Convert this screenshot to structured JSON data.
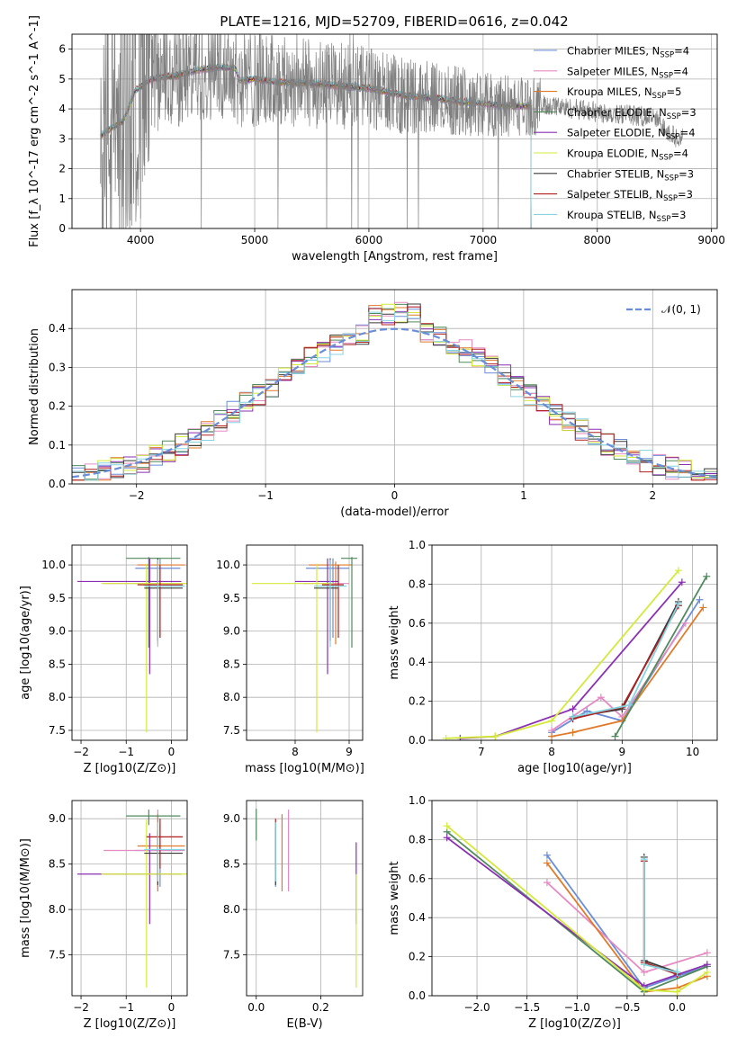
{
  "figure": {
    "title": "PLATE=1216, MJD=52709, FIBERID=0616, z=0.042"
  },
  "fits": [
    {
      "name": "Chabrier MILES",
      "nssp": "4",
      "color": "#6a8dd9"
    },
    {
      "name": "Salpeter MILES",
      "nssp": "4",
      "color": "#e68ac4"
    },
    {
      "name": "Kroupa MILES",
      "nssp": "5",
      "color": "#e07a29"
    },
    {
      "name": "Chabrier ELODIE",
      "nssp": "3",
      "color": "#4f8a5c"
    },
    {
      "name": "Salpeter ELODIE",
      "nssp": "4",
      "color": "#8a2fb3"
    },
    {
      "name": "Kroupa ELODIE",
      "nssp": "4",
      "color": "#d4ea3a"
    },
    {
      "name": "Chabrier STELIB",
      "nssp": "3",
      "color": "#3a3a3a"
    },
    {
      "name": "Salpeter STELIB",
      "nssp": "3",
      "color": "#b02020"
    },
    {
      "name": "Kroupa STELIB",
      "nssp": "3",
      "color": "#86d4e0"
    }
  ],
  "chart_data": [
    {
      "id": "spectrum",
      "type": "line",
      "xlabel": "wavelength [Angstrom, rest frame]",
      "ylabel": "Flux [f_λ 10^-17 erg cm^-2 s^-1 A^-1]",
      "xlim": [
        3400,
        9050
      ],
      "ylim": [
        0,
        6.5
      ],
      "xticks": [
        4000,
        5000,
        6000,
        7000,
        8000,
        9000
      ],
      "yticks": [
        0,
        1,
        2,
        3,
        4,
        5,
        6
      ],
      "legend": "upper right",
      "data_color": "#808080",
      "continuum": [
        [
          3650,
          3.1
        ],
        [
          3720,
          3.3
        ],
        [
          3850,
          3.6
        ],
        [
          3950,
          4.6
        ],
        [
          4050,
          4.9
        ],
        [
          4150,
          5.05
        ],
        [
          4300,
          5.1
        ],
        [
          4500,
          5.3
        ],
        [
          4700,
          5.4
        ],
        [
          4830,
          5.35
        ],
        [
          4870,
          4.95
        ],
        [
          5000,
          5.0
        ],
        [
          5200,
          4.9
        ],
        [
          5500,
          4.85
        ],
        [
          5800,
          4.75
        ],
        [
          6000,
          4.7
        ],
        [
          6300,
          4.45
        ],
        [
          6600,
          4.35
        ],
        [
          6900,
          4.2
        ],
        [
          7200,
          4.1
        ],
        [
          7420,
          4.1
        ],
        [
          7600,
          4.1
        ],
        [
          8000,
          3.9
        ],
        [
          8300,
          3.8
        ],
        [
          8500,
          3.7
        ],
        [
          8700,
          3.0
        ]
      ],
      "model_end": [
        7420,
        7420,
        7420,
        7420,
        7420,
        7420,
        7420,
        7420,
        7420
      ]
    },
    {
      "id": "residuals",
      "type": "histogram",
      "xlabel": "(data-model)/error",
      "ylabel": "Normed distribution",
      "xlim": [
        -2.5,
        2.5
      ],
      "ylim": [
        0,
        0.5
      ],
      "xticks": [
        -2,
        -1,
        0,
        1,
        2
      ],
      "yticks": [
        0.0,
        0.1,
        0.2,
        0.3,
        0.4
      ],
      "legend_label": "𝒩(0, 1)",
      "gaussian_color": "#6a8dd9"
    },
    {
      "id": "z-age",
      "type": "errorbar",
      "xlabel": "Z [log10(Z/Z⊙)]",
      "ylabel": "age [log10(age/yr)]",
      "xlim": [
        -2.2,
        0.35
      ],
      "ylim": [
        7.35,
        10.3
      ],
      "xticks": [
        -2,
        -1,
        0
      ],
      "yticks": [
        7.5,
        8.0,
        8.5,
        9.0,
        9.5,
        10.0
      ],
      "points": [
        {
          "fit": 0,
          "x": -0.25,
          "xerr": [
            0.55,
            0.45
          ],
          "y": 9.95,
          "yerr": [
            1.05,
            0.15
          ]
        },
        {
          "fit": 1,
          "x": -0.3,
          "xerr": [
            1.2,
            0.6
          ],
          "y": 9.72,
          "yerr": [
            0.85,
            0.35
          ]
        },
        {
          "fit": 2,
          "x": -0.3,
          "xerr": [
            0.45,
            0.6
          ],
          "y": 10.0,
          "yerr": [
            1.2,
            0.05
          ]
        },
        {
          "fit": 3,
          "x": -0.5,
          "xerr": [
            0.5,
            0.7
          ],
          "y": 10.1,
          "yerr": [
            1.35,
            0.02
          ]
        },
        {
          "fit": 4,
          "x": -0.48,
          "xerr": [
            1.6,
            0.7
          ],
          "y": 9.75,
          "yerr": [
            1.4,
            0.35
          ]
        },
        {
          "fit": 5,
          "x": -0.55,
          "xerr": [
            1.0,
            0.9
          ],
          "y": 9.72,
          "yerr": [
            2.25,
            0.3
          ]
        },
        {
          "fit": 6,
          "x": -0.3,
          "xerr": [
            0.3,
            0.55
          ],
          "y": 9.65,
          "yerr": [
            0.8,
            0.45
          ]
        },
        {
          "fit": 7,
          "x": -0.25,
          "xerr": [
            0.5,
            0.5
          ],
          "y": 9.7,
          "yerr": [
            0.8,
            0.3
          ]
        },
        {
          "fit": 8,
          "x": -0.3,
          "xerr": [
            0.3,
            0.6
          ],
          "y": 9.68,
          "yerr": [
            0.92,
            0.4
          ]
        }
      ]
    },
    {
      "id": "mass-age",
      "type": "errorbar",
      "xlabel": "mass [log10(M/M⊙)]",
      "ylabel": "",
      "xlim": [
        7.1,
        9.25
      ],
      "ylim": [
        7.35,
        10.3
      ],
      "xticks": [
        8,
        9
      ],
      "yticks": [
        7.5,
        8.0,
        8.5,
        9.0,
        9.5,
        10.0
      ],
      "points": [
        {
          "fit": 0,
          "x": 8.7,
          "xerr": [
            0.5,
            0.3
          ],
          "y": 9.95,
          "yerr": [
            1.05,
            0.15
          ]
        },
        {
          "fit": 1,
          "x": 8.65,
          "xerr": [
            0.5,
            0.35
          ],
          "y": 9.72,
          "yerr": [
            0.85,
            0.35
          ]
        },
        {
          "fit": 2,
          "x": 8.75,
          "xerr": [
            0.5,
            0.3
          ],
          "y": 10.0,
          "yerr": [
            1.2,
            0.05
          ]
        },
        {
          "fit": 3,
          "x": 9.05,
          "xerr": [
            0.2,
            0.1
          ],
          "y": 10.1,
          "yerr": [
            1.35,
            0.02
          ]
        },
        {
          "fit": 4,
          "x": 8.6,
          "xerr": [
            0.6,
            0.2
          ],
          "y": 9.75,
          "yerr": [
            1.4,
            0.35
          ]
        },
        {
          "fit": 5,
          "x": 8.4,
          "xerr": [
            1.2,
            0.3
          ],
          "y": 9.72,
          "yerr": [
            2.25,
            0.3
          ]
        },
        {
          "fit": 6,
          "x": 8.65,
          "xerr": [
            0.3,
            0.15
          ],
          "y": 9.65,
          "yerr": [
            0.8,
            0.45
          ]
        },
        {
          "fit": 7,
          "x": 8.8,
          "xerr": [
            0.3,
            0.1
          ],
          "y": 9.7,
          "yerr": [
            0.8,
            0.3
          ]
        },
        {
          "fit": 8,
          "x": 8.65,
          "xerr": [
            0.3,
            0.3
          ],
          "y": 9.68,
          "yerr": [
            0.92,
            0.4
          ]
        }
      ]
    },
    {
      "id": "age-weight",
      "type": "line",
      "xlabel": "age [log10(age/yr)]",
      "ylabel": "mass weight",
      "xlim": [
        6.3,
        10.35
      ],
      "ylim": [
        0,
        1.0
      ],
      "xticks": [
        7,
        8,
        9,
        10
      ],
      "yticks": [
        0.0,
        0.2,
        0.4,
        0.6,
        0.8,
        1.0
      ],
      "series": [
        {
          "fit": 0,
          "x": [
            8.0,
            8.5,
            9.0,
            10.1
          ],
          "y": [
            0.04,
            0.15,
            0.1,
            0.72
          ]
        },
        {
          "fit": 1,
          "x": [
            8.0,
            8.7,
            9.0,
            9.9
          ],
          "y": [
            0.05,
            0.22,
            0.12,
            0.6
          ]
        },
        {
          "fit": 2,
          "x": [
            8.0,
            8.3,
            9.0,
            10.15
          ],
          "y": [
            0.02,
            0.04,
            0.1,
            0.68
          ]
        },
        {
          "fit": 3,
          "x": [
            8.9,
            10.2
          ],
          "y": [
            0.02,
            0.84
          ]
        },
        {
          "fit": 4,
          "x": [
            6.7,
            7.2,
            8.3,
            9.85
          ],
          "y": [
            0.01,
            0.02,
            0.16,
            0.81
          ]
        },
        {
          "fit": 5,
          "x": [
            6.5,
            7.2,
            8.0,
            9.8
          ],
          "y": [
            0.01,
            0.02,
            0.1,
            0.87
          ]
        },
        {
          "fit": 6,
          "x": [
            8.3,
            9.0,
            9.8
          ],
          "y": [
            0.12,
            0.16,
            0.71
          ]
        },
        {
          "fit": 7,
          "x": [
            8.3,
            9.0,
            9.8
          ],
          "y": [
            0.11,
            0.17,
            0.69
          ]
        },
        {
          "fit": 8,
          "x": [
            8.3,
            9.1,
            9.8
          ],
          "y": [
            0.12,
            0.18,
            0.7
          ]
        }
      ]
    },
    {
      "id": "z-mass",
      "type": "errorbar",
      "xlabel": "Z [log10(Z/Z⊙)]",
      "ylabel": "mass [log10(M/M⊙)]",
      "xlim": [
        -2.2,
        0.35
      ],
      "ylim": [
        7.05,
        9.2
      ],
      "xticks": [
        -2,
        -1,
        0
      ],
      "yticks": [
        7.5,
        8.0,
        8.5,
        9.0
      ],
      "points": [
        {
          "fit": 0,
          "x": -0.25,
          "xerr": [
            0.55,
            0.45
          ],
          "y": 8.65,
          "yerr": [
            0.4,
            0.3
          ]
        },
        {
          "fit": 1,
          "x": -0.3,
          "xerr": [
            1.2,
            0.6
          ],
          "y": 8.65,
          "yerr": [
            0.45,
            0.45
          ]
        },
        {
          "fit": 2,
          "x": -0.3,
          "xerr": [
            0.45,
            0.6
          ],
          "y": 8.7,
          "yerr": [
            0.5,
            0.35
          ]
        },
        {
          "fit": 3,
          "x": -0.5,
          "xerr": [
            0.5,
            0.7
          ],
          "y": 9.03,
          "yerr": [
            0.1,
            0.07
          ]
        },
        {
          "fit": 4,
          "x": -0.48,
          "xerr": [
            1.6,
            0.7
          ],
          "y": 8.39,
          "yerr": [
            0.55,
            0.45
          ]
        },
        {
          "fit": 5,
          "x": -0.55,
          "xerr": [
            1.0,
            0.9
          ],
          "y": 8.39,
          "yerr": [
            1.25,
            0.6
          ]
        },
        {
          "fit": 6,
          "x": -0.3,
          "xerr": [
            0.3,
            0.55
          ],
          "y": 8.62,
          "yerr": [
            0.35,
            0.25
          ]
        },
        {
          "fit": 7,
          "x": -0.25,
          "xerr": [
            0.3,
            0.5
          ],
          "y": 8.8,
          "yerr": [
            0.35,
            0.2
          ]
        },
        {
          "fit": 8,
          "x": -0.3,
          "xerr": [
            0.3,
            0.6
          ],
          "y": 8.66,
          "yerr": [
            0.35,
            0.3
          ]
        }
      ]
    },
    {
      "id": "ebv-mass",
      "type": "errorbar",
      "xlabel": "E(B-V)",
      "ylabel": "",
      "xlim": [
        -0.03,
        0.33
      ],
      "ylim": [
        7.05,
        9.2
      ],
      "xticks": [
        0.0,
        0.2
      ],
      "yticks": [
        7.5,
        8.0,
        8.5,
        9.0
      ],
      "points": [
        {
          "fit": 0,
          "x": 0.06,
          "y": 8.65,
          "yerr": [
            0.4,
            0.3
          ]
        },
        {
          "fit": 1,
          "x": 0.1,
          "y": 8.65,
          "yerr": [
            0.45,
            0.45
          ]
        },
        {
          "fit": 2,
          "x": 0.08,
          "y": 8.7,
          "yerr": [
            0.5,
            0.35
          ]
        },
        {
          "fit": 3,
          "x": 0.0,
          "y": 9.03,
          "yerr": [
            0.27,
            0.08
          ]
        },
        {
          "fit": 4,
          "x": 0.31,
          "y": 8.39,
          "yerr": [
            0.55,
            0.35
          ]
        },
        {
          "fit": 5,
          "x": 0.31,
          "y": 8.39,
          "yerr": [
            1.25,
            0.0
          ]
        },
        {
          "fit": 6,
          "x": 0.06,
          "y": 8.62,
          "yerr": [
            0.35,
            0.28
          ]
        },
        {
          "fit": 7,
          "x": 0.06,
          "y": 8.8,
          "yerr": [
            0.35,
            0.2
          ]
        },
        {
          "fit": 8,
          "x": 0.06,
          "y": 8.66,
          "yerr": [
            0.35,
            0.3
          ]
        }
      ]
    },
    {
      "id": "z-weight",
      "type": "line",
      "xlabel": "Z [log10(Z/Z⊙)]",
      "ylabel": "mass weight",
      "xlim": [
        -2.45,
        0.4
      ],
      "ylim": [
        0,
        1.0
      ],
      "xticks": [
        -2.0,
        -1.5,
        -1.0,
        -0.5,
        0.0
      ],
      "yticks": [
        0.0,
        0.2,
        0.4,
        0.6,
        0.8,
        1.0
      ],
      "series": [
        {
          "fit": 0,
          "x": [
            -1.3,
            -0.33,
            0.0,
            0.3
          ],
          "y": [
            0.72,
            0.04,
            0.1,
            0.15
          ]
        },
        {
          "fit": 1,
          "x": [
            -1.3,
            -0.33,
            0.3
          ],
          "y": [
            0.58,
            0.12,
            0.22
          ]
        },
        {
          "fit": 2,
          "x": [
            -1.3,
            -0.33,
            0.0,
            0.3
          ],
          "y": [
            0.68,
            0.02,
            0.04,
            0.1
          ]
        },
        {
          "fit": 3,
          "x": [
            -2.3,
            -0.33,
            0.3
          ],
          "y": [
            0.84,
            0.02,
            0.15
          ]
        },
        {
          "fit": 4,
          "x": [
            -2.3,
            -0.33,
            0.3
          ],
          "y": [
            0.81,
            0.05,
            0.16
          ]
        },
        {
          "fit": 5,
          "x": [
            -2.3,
            -0.33,
            0.0,
            0.3
          ],
          "y": [
            0.87,
            0.03,
            0.02,
            0.12
          ]
        },
        {
          "fit": 6,
          "x": [
            -0.33,
            -0.33,
            0.0
          ],
          "y": [
            0.71,
            0.18,
            0.12
          ]
        },
        {
          "fit": 7,
          "x": [
            -0.33,
            -0.33,
            0.0
          ],
          "y": [
            0.69,
            0.17,
            0.11
          ]
        },
        {
          "fit": 8,
          "x": [
            -0.33,
            -0.33,
            0.0
          ],
          "y": [
            0.7,
            0.16,
            0.12
          ]
        }
      ]
    }
  ]
}
